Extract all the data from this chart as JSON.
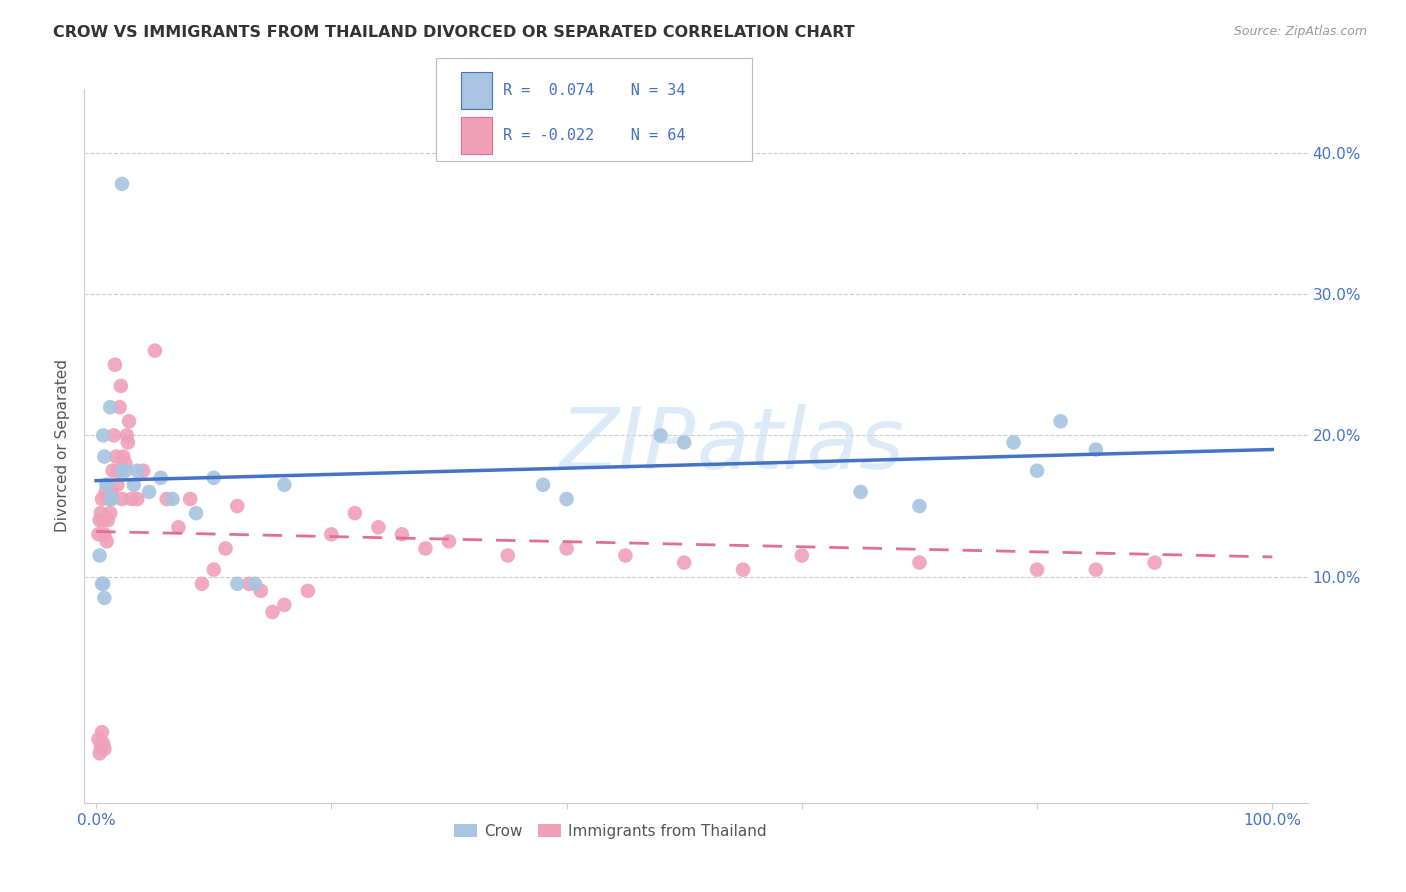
{
  "title": "CROW VS IMMIGRANTS FROM THAILAND DIVORCED OR SEPARATED CORRELATION CHART",
  "source": "Source: ZipAtlas.com",
  "ylabel": "Divorced or Separated",
  "x_tick_labels_show": [
    "0.0%",
    "100.0%"
  ],
  "x_tick_values": [
    0.0,
    0.2,
    0.4,
    0.6,
    0.8,
    1.0
  ],
  "y_tick_labels": [
    "10.0%",
    "20.0%",
    "30.0%",
    "40.0%"
  ],
  "y_tick_values": [
    0.1,
    0.2,
    0.3,
    0.4
  ],
  "xlim": [
    -0.01,
    1.03
  ],
  "ylim": [
    -0.06,
    0.445
  ],
  "crow_color": "#a8c4e0",
  "thai_color": "#f0a0b8",
  "crow_line_color": "#4472c4",
  "thai_line_color": "#e07090",
  "crow_line_slope": 0.022,
  "crow_line_intercept": 0.168,
  "thai_line_slope": -0.018,
  "thai_line_intercept": 0.132,
  "crow_scatter_x": [
    0.025,
    0.005,
    0.003,
    0.006,
    0.007,
    0.012,
    0.009,
    0.013,
    0.006,
    0.007,
    0.022,
    0.032,
    0.045,
    0.055,
    0.38,
    0.4,
    0.48,
    0.5,
    0.65,
    0.7,
    0.78,
    0.8,
    0.82,
    0.85,
    0.009,
    0.013,
    0.022,
    0.035,
    0.065,
    0.085,
    0.1,
    0.12,
    0.135,
    0.16
  ],
  "crow_scatter_y": [
    0.175,
    0.095,
    0.115,
    0.2,
    0.185,
    0.22,
    0.165,
    0.155,
    0.095,
    0.085,
    0.175,
    0.165,
    0.16,
    0.17,
    0.165,
    0.155,
    0.2,
    0.195,
    0.16,
    0.15,
    0.195,
    0.175,
    0.21,
    0.19,
    0.165,
    0.155,
    0.378,
    0.175,
    0.155,
    0.145,
    0.17,
    0.095,
    0.095,
    0.165
  ],
  "thai_scatter_x": [
    0.002,
    0.003,
    0.004,
    0.005,
    0.006,
    0.007,
    0.008,
    0.009,
    0.01,
    0.011,
    0.012,
    0.013,
    0.014,
    0.015,
    0.016,
    0.017,
    0.018,
    0.019,
    0.02,
    0.021,
    0.022,
    0.023,
    0.025,
    0.026,
    0.027,
    0.028,
    0.03,
    0.035,
    0.04,
    0.05,
    0.06,
    0.07,
    0.08,
    0.09,
    0.1,
    0.11,
    0.12,
    0.13,
    0.14,
    0.15,
    0.16,
    0.18,
    0.2,
    0.22,
    0.24,
    0.26,
    0.28,
    0.3,
    0.35,
    0.4,
    0.45,
    0.5,
    0.55,
    0.6,
    0.7,
    0.8,
    0.85,
    0.9,
    0.002,
    0.003,
    0.004,
    0.005,
    0.006,
    0.007
  ],
  "thai_scatter_y": [
    0.13,
    0.14,
    0.145,
    0.155,
    0.14,
    0.13,
    0.16,
    0.125,
    0.14,
    0.155,
    0.145,
    0.16,
    0.175,
    0.2,
    0.25,
    0.185,
    0.165,
    0.175,
    0.22,
    0.235,
    0.155,
    0.185,
    0.18,
    0.2,
    0.195,
    0.21,
    0.155,
    0.155,
    0.175,
    0.26,
    0.155,
    0.135,
    0.155,
    0.095,
    0.105,
    0.12,
    0.15,
    0.095,
    0.09,
    0.075,
    0.08,
    0.09,
    0.13,
    0.145,
    0.135,
    0.13,
    0.12,
    0.125,
    0.115,
    0.12,
    0.115,
    0.11,
    0.105,
    0.115,
    0.11,
    0.105,
    0.105,
    0.11,
    -0.015,
    -0.025,
    -0.02,
    -0.01,
    -0.018,
    -0.022
  ],
  "watermark_text": "ZIPatlas",
  "watermark_zip_color": "#c8dcf0",
  "watermark_atlas_color": "#c8dcf0"
}
